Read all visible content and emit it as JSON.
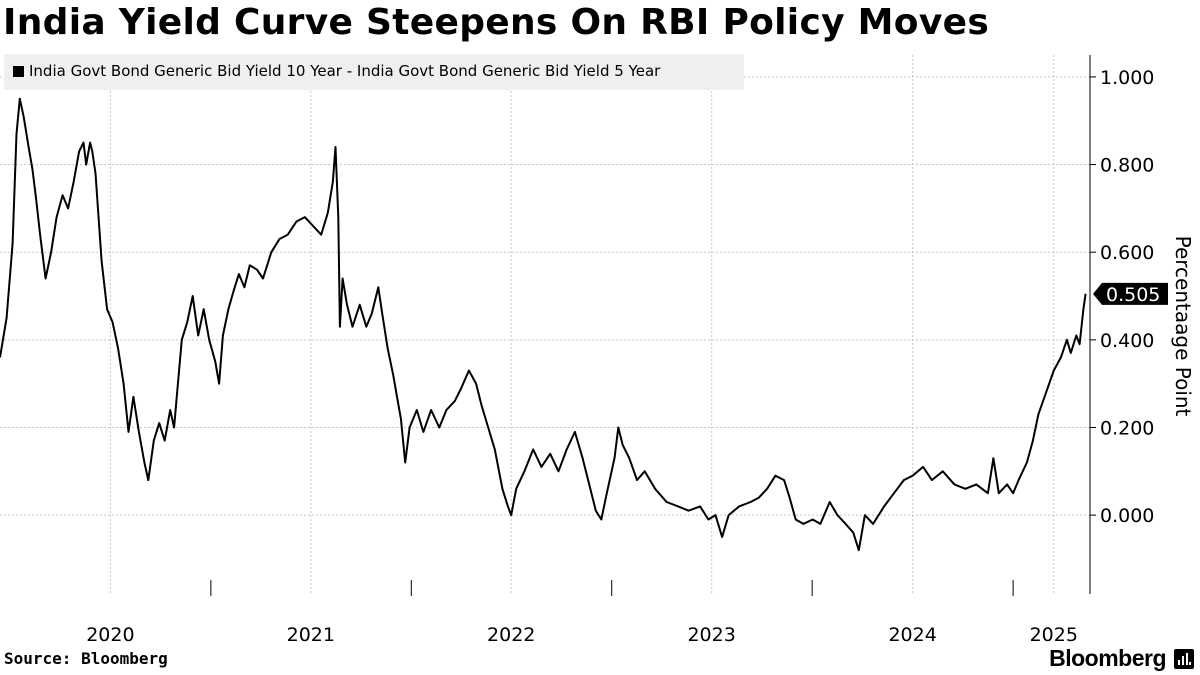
{
  "title": "India Yield Curve Steepens On RBI Policy Moves",
  "legend": {
    "label": "India Govt Bond Generic Bid Yield 10 Year - India Govt Bond Generic Bid Yield 5 Year",
    "color": "#000000"
  },
  "source": "Source: Bloomberg",
  "brand": "Bloomberg",
  "chart_data": {
    "type": "line",
    "title": "India Yield Curve Steepens On RBI Policy Moves",
    "ylabel": "Percentaage Point",
    "ylim": [
      -0.18,
      1.05
    ],
    "xlim": [
      "2019-12-13",
      "2025-05-20"
    ],
    "yticks": [
      {
        "value": 1.0,
        "label": "1.000"
      },
      {
        "value": 0.8,
        "label": "0.800"
      },
      {
        "value": 0.6,
        "label": "0.600"
      },
      {
        "value": 0.4,
        "label": "0.400"
      },
      {
        "value": 0.2,
        "label": "0.200"
      },
      {
        "value": 0.0,
        "label": "0.000"
      }
    ],
    "xticks": [
      {
        "date": "2020-07-01",
        "label": "2020"
      },
      {
        "date": "2021-07-01",
        "label": "2021"
      },
      {
        "date": "2022-07-01",
        "label": "2022"
      },
      {
        "date": "2023-07-01",
        "label": "2023"
      },
      {
        "date": "2024-07-01",
        "label": "2024"
      },
      {
        "date": "2025-03-15",
        "label": "2025"
      }
    ],
    "year_dividers": [
      "2020-12-31",
      "2021-12-31",
      "2022-12-31",
      "2023-12-31",
      "2024-12-31"
    ],
    "grid": true,
    "legend_position": "top-left",
    "last_value_label": "0.505",
    "series": [
      {
        "name": "India Govt Bond Generic Bid Yield 10 Year - India Govt Bond Generic Bid Yield 5 Year",
        "color": "#000000",
        "points": [
          [
            "2019-12-13",
            0.36
          ],
          [
            "2019-12-25",
            0.45
          ],
          [
            "2020-01-05",
            0.62
          ],
          [
            "2020-01-12",
            0.87
          ],
          [
            "2020-01-18",
            0.95
          ],
          [
            "2020-01-25",
            0.91
          ],
          [
            "2020-02-03",
            0.84
          ],
          [
            "2020-02-10",
            0.79
          ],
          [
            "2020-02-17",
            0.72
          ],
          [
            "2020-02-24",
            0.64
          ],
          [
            "2020-03-05",
            0.54
          ],
          [
            "2020-03-15",
            0.6
          ],
          [
            "2020-03-25",
            0.68
          ],
          [
            "2020-04-05",
            0.73
          ],
          [
            "2020-04-15",
            0.7
          ],
          [
            "2020-04-25",
            0.76
          ],
          [
            "2020-05-05",
            0.83
          ],
          [
            "2020-05-13",
            0.85
          ],
          [
            "2020-05-18",
            0.8
          ],
          [
            "2020-05-25",
            0.85
          ],
          [
            "2020-05-29",
            0.83
          ],
          [
            "2020-06-04",
            0.78
          ],
          [
            "2020-06-15",
            0.58
          ],
          [
            "2020-06-25",
            0.47
          ],
          [
            "2020-07-05",
            0.44
          ],
          [
            "2020-07-15",
            0.38
          ],
          [
            "2020-07-25",
            0.3
          ],
          [
            "2020-08-03",
            0.19
          ],
          [
            "2020-08-12",
            0.27
          ],
          [
            "2020-08-22",
            0.19
          ],
          [
            "2020-09-01",
            0.12
          ],
          [
            "2020-09-08",
            0.08
          ],
          [
            "2020-09-18",
            0.17
          ],
          [
            "2020-09-28",
            0.21
          ],
          [
            "2020-10-08",
            0.17
          ],
          [
            "2020-10-18",
            0.24
          ],
          [
            "2020-10-25",
            0.2
          ],
          [
            "2020-11-01",
            0.3
          ],
          [
            "2020-11-08",
            0.4
          ],
          [
            "2020-11-18",
            0.44
          ],
          [
            "2020-11-28",
            0.5
          ],
          [
            "2020-12-08",
            0.41
          ],
          [
            "2020-12-18",
            0.47
          ],
          [
            "2020-12-28",
            0.4
          ],
          [
            "2021-01-08",
            0.35
          ],
          [
            "2021-01-15",
            0.3
          ],
          [
            "2021-01-22",
            0.41
          ],
          [
            "2021-02-01",
            0.47
          ],
          [
            "2021-02-10",
            0.51
          ],
          [
            "2021-02-20",
            0.55
          ],
          [
            "2021-03-02",
            0.52
          ],
          [
            "2021-03-12",
            0.57
          ],
          [
            "2021-03-25",
            0.56
          ],
          [
            "2021-04-05",
            0.54
          ],
          [
            "2021-04-20",
            0.6
          ],
          [
            "2021-05-05",
            0.63
          ],
          [
            "2021-05-20",
            0.64
          ],
          [
            "2021-06-05",
            0.67
          ],
          [
            "2021-06-20",
            0.68
          ],
          [
            "2021-07-05",
            0.66
          ],
          [
            "2021-07-20",
            0.64
          ],
          [
            "2021-08-01",
            0.69
          ],
          [
            "2021-08-10",
            0.76
          ],
          [
            "2021-08-15",
            0.84
          ],
          [
            "2021-08-20",
            0.68
          ],
          [
            "2021-08-23",
            0.43
          ],
          [
            "2021-08-28",
            0.54
          ],
          [
            "2021-09-05",
            0.48
          ],
          [
            "2021-09-15",
            0.43
          ],
          [
            "2021-09-28",
            0.48
          ],
          [
            "2021-10-10",
            0.43
          ],
          [
            "2021-10-20",
            0.46
          ],
          [
            "2021-11-01",
            0.52
          ],
          [
            "2021-11-08",
            0.46
          ],
          [
            "2021-11-18",
            0.38
          ],
          [
            "2021-11-28",
            0.32
          ],
          [
            "2021-12-05",
            0.27
          ],
          [
            "2021-12-12",
            0.22
          ],
          [
            "2021-12-20",
            0.12
          ],
          [
            "2021-12-28",
            0.2
          ],
          [
            "2022-01-10",
            0.24
          ],
          [
            "2022-01-22",
            0.19
          ],
          [
            "2022-02-05",
            0.24
          ],
          [
            "2022-02-20",
            0.2
          ],
          [
            "2022-03-05",
            0.24
          ],
          [
            "2022-03-20",
            0.26
          ],
          [
            "2022-04-01",
            0.29
          ],
          [
            "2022-04-15",
            0.33
          ],
          [
            "2022-04-28",
            0.3
          ],
          [
            "2022-05-08",
            0.25
          ],
          [
            "2022-05-20",
            0.2
          ],
          [
            "2022-06-01",
            0.15
          ],
          [
            "2022-06-15",
            0.06
          ],
          [
            "2022-06-25",
            0.02
          ],
          [
            "2022-07-01",
            0.0
          ],
          [
            "2022-07-10",
            0.06
          ],
          [
            "2022-07-25",
            0.1
          ],
          [
            "2022-08-10",
            0.15
          ],
          [
            "2022-08-25",
            0.11
          ],
          [
            "2022-09-10",
            0.14
          ],
          [
            "2022-09-25",
            0.1
          ],
          [
            "2022-10-10",
            0.15
          ],
          [
            "2022-10-25",
            0.19
          ],
          [
            "2022-11-08",
            0.13
          ],
          [
            "2022-11-22",
            0.06
          ],
          [
            "2022-12-02",
            0.01
          ],
          [
            "2022-12-12",
            -0.01
          ],
          [
            "2022-12-22",
            0.05
          ],
          [
            "2023-01-05",
            0.13
          ],
          [
            "2023-01-12",
            0.2
          ],
          [
            "2023-01-20",
            0.16
          ],
          [
            "2023-02-01",
            0.13
          ],
          [
            "2023-02-15",
            0.08
          ],
          [
            "2023-03-01",
            0.1
          ],
          [
            "2023-03-20",
            0.06
          ],
          [
            "2023-04-10",
            0.03
          ],
          [
            "2023-05-01",
            0.02
          ],
          [
            "2023-05-20",
            0.01
          ],
          [
            "2023-06-10",
            0.02
          ],
          [
            "2023-06-25",
            -0.01
          ],
          [
            "2023-07-08",
            0.0
          ],
          [
            "2023-07-20",
            -0.05
          ],
          [
            "2023-08-01",
            0.0
          ],
          [
            "2023-08-20",
            0.02
          ],
          [
            "2023-09-10",
            0.03
          ],
          [
            "2023-09-25",
            0.04
          ],
          [
            "2023-10-10",
            0.06
          ],
          [
            "2023-10-25",
            0.09
          ],
          [
            "2023-11-10",
            0.08
          ],
          [
            "2023-11-20",
            0.04
          ],
          [
            "2023-12-01",
            -0.01
          ],
          [
            "2023-12-15",
            -0.02
          ],
          [
            "2024-01-01",
            -0.01
          ],
          [
            "2024-01-15",
            -0.02
          ],
          [
            "2024-02-01",
            0.03
          ],
          [
            "2024-02-15",
            0.0
          ],
          [
            "2024-03-01",
            -0.02
          ],
          [
            "2024-03-15",
            -0.04
          ],
          [
            "2024-03-25",
            -0.08
          ],
          [
            "2024-04-05",
            0.0
          ],
          [
            "2024-04-20",
            -0.02
          ],
          [
            "2024-05-10",
            0.02
          ],
          [
            "2024-05-28",
            0.05
          ],
          [
            "2024-06-15",
            0.08
          ],
          [
            "2024-07-01",
            0.09
          ],
          [
            "2024-07-20",
            0.11
          ],
          [
            "2024-08-05",
            0.08
          ],
          [
            "2024-08-25",
            0.1
          ],
          [
            "2024-09-15",
            0.07
          ],
          [
            "2024-10-05",
            0.06
          ],
          [
            "2024-10-25",
            0.07
          ],
          [
            "2024-11-15",
            0.05
          ],
          [
            "2024-11-25",
            0.13
          ],
          [
            "2024-12-05",
            0.05
          ],
          [
            "2024-12-20",
            0.07
          ],
          [
            "2024-12-31",
            0.05
          ],
          [
            "2025-01-10",
            0.08
          ],
          [
            "2025-01-25",
            0.12
          ],
          [
            "2025-02-05",
            0.17
          ],
          [
            "2025-02-15",
            0.23
          ],
          [
            "2025-03-01",
            0.28
          ],
          [
            "2025-03-15",
            0.33
          ],
          [
            "2025-03-28",
            0.36
          ],
          [
            "2025-04-08",
            0.4
          ],
          [
            "2025-04-15",
            0.37
          ],
          [
            "2025-04-25",
            0.41
          ],
          [
            "2025-05-01",
            0.39
          ],
          [
            "2025-05-08",
            0.47
          ],
          [
            "2025-05-12",
            0.505
          ]
        ]
      }
    ]
  }
}
